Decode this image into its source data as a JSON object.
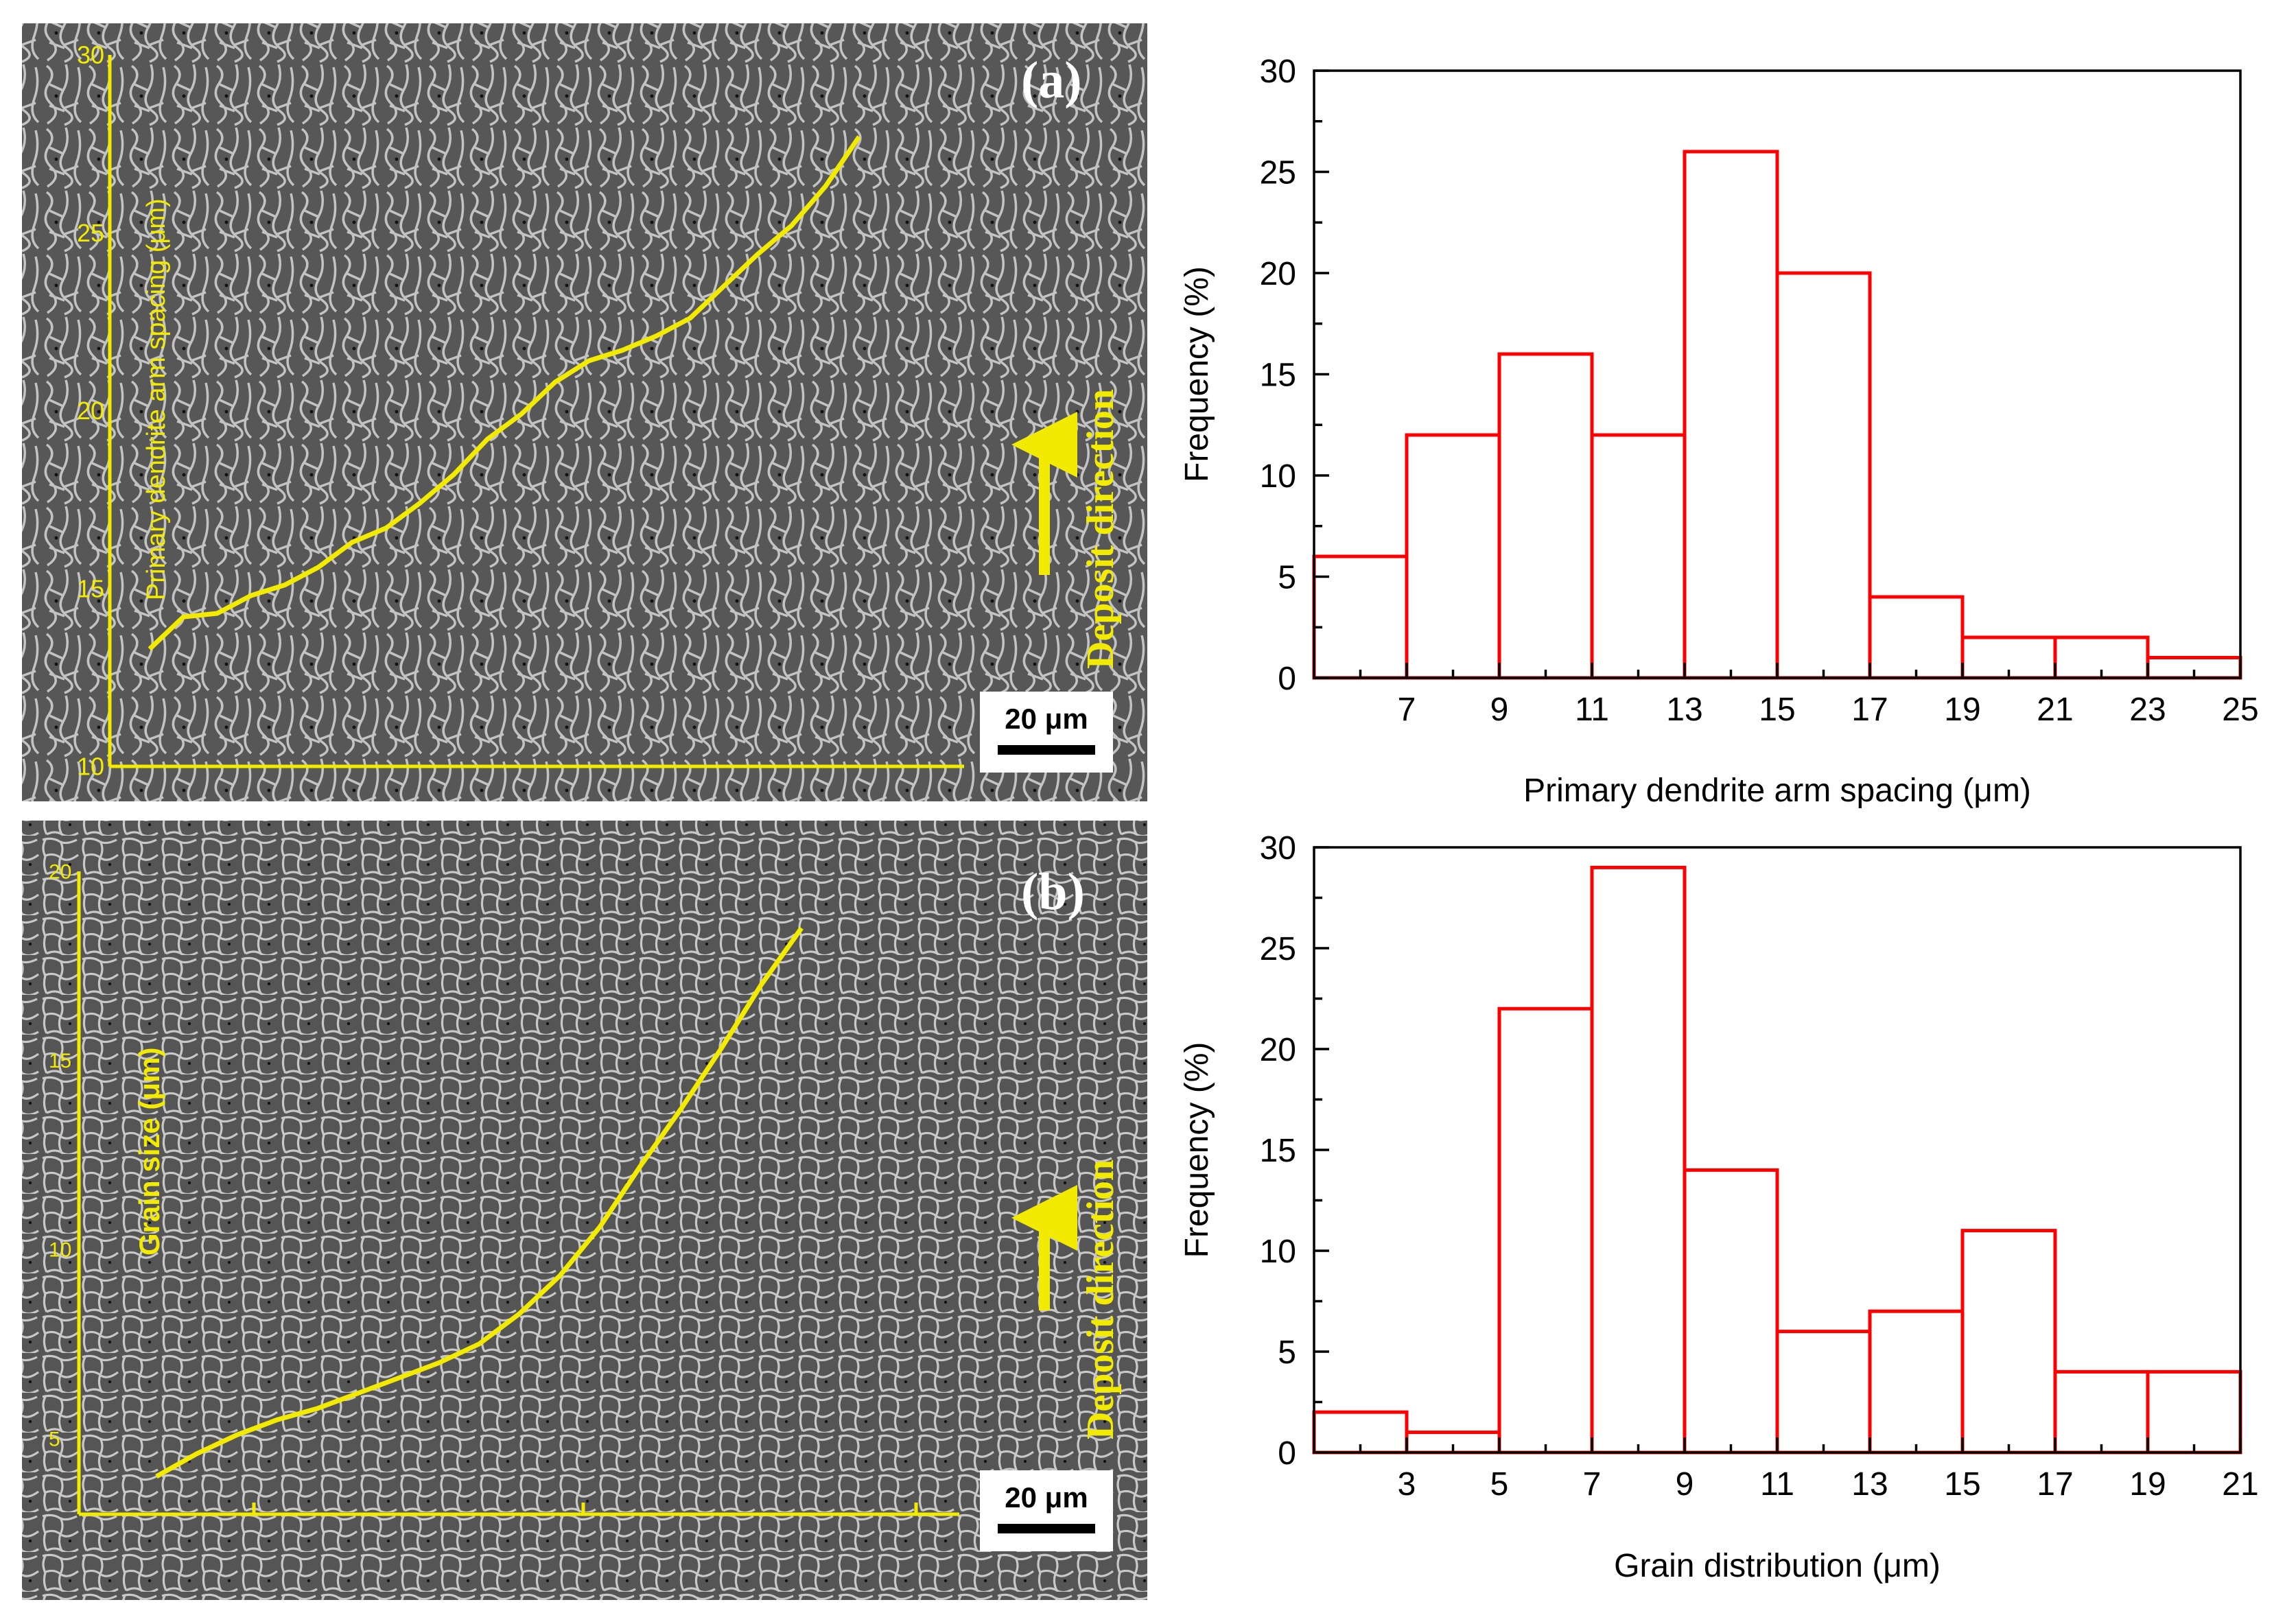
{
  "figure": {
    "colors": {
      "accent_trace": "#f2ea00",
      "histogram_stroke": "#ff0000",
      "micrograph_background": "#555555",
      "micrograph_network": "#d9d9d9"
    },
    "panels": [
      {
        "letter": "(a)",
        "vertical_axis_label": "Primary dendrite arm spacing (μm)",
        "vertical_ticks": [
          "10",
          "15",
          "20",
          "25",
          "30"
        ],
        "direction_label": "Deposit direction",
        "direction_icon": "arrow-up-icon",
        "scale_bar_label": "20 μm",
        "trace": {
          "range": [
            10,
            30
          ],
          "values": [
            13.3,
            14.2,
            14.3,
            14.8,
            15.1,
            15.6,
            16.3,
            16.7,
            17.4,
            18.2,
            19.2,
            19.9,
            20.8,
            21.4,
            21.7,
            22.1,
            22.6,
            23.5,
            24.4,
            25.2,
            26.3,
            27.7
          ]
        }
      },
      {
        "letter": "(b)",
        "vertical_axis_label": "Grain size (μm)",
        "vertical_ticks": [
          "5",
          "10",
          "15",
          "20"
        ],
        "direction_label": "Deposit direction",
        "direction_icon": "arrow-up-icon",
        "scale_bar_label": "20 μm",
        "trace": {
          "range": [
            3,
            20
          ],
          "values": [
            4.0,
            4.6,
            5.1,
            5.5,
            5.8,
            6.2,
            6.6,
            7.0,
            7.5,
            8.3,
            9.3,
            10.6,
            12.2,
            13.7,
            15.3,
            17.0,
            18.5
          ]
        }
      }
    ]
  },
  "chart_data": [
    {
      "type": "bar",
      "bins": [
        [
          5,
          7
        ],
        [
          7,
          9
        ],
        [
          9,
          11
        ],
        [
          11,
          13
        ],
        [
          13,
          15
        ],
        [
          15,
          17
        ],
        [
          17,
          19
        ],
        [
          19,
          21
        ],
        [
          21,
          23
        ],
        [
          23,
          25
        ]
      ],
      "values": [
        6,
        12,
        16,
        12,
        26,
        20,
        4,
        2,
        2,
        1
      ],
      "xlabel": "Primary dendrite arm spacing (μm)",
      "ylabel": "Frequency (%)",
      "xlim": [
        5,
        25
      ],
      "ylim": [
        0,
        30
      ],
      "xticks": [
        7,
        9,
        11,
        13,
        15,
        17,
        19,
        21,
        23,
        25
      ],
      "yticks": [
        0,
        5,
        10,
        15,
        20,
        25,
        30
      ],
      "grid": false,
      "color": "#ff0000"
    },
    {
      "type": "bar",
      "bins": [
        [
          1,
          3
        ],
        [
          3,
          5
        ],
        [
          5,
          7
        ],
        [
          7,
          9
        ],
        [
          9,
          11
        ],
        [
          11,
          13
        ],
        [
          13,
          15
        ],
        [
          15,
          17
        ],
        [
          17,
          19
        ],
        [
          19,
          21
        ]
      ],
      "values": [
        2,
        1,
        22,
        29,
        14,
        6,
        7,
        11,
        4,
        4
      ],
      "xlabel": "Grain distribution (μm)",
      "ylabel": "Frequency (%)",
      "xlim": [
        1,
        21
      ],
      "ylim": [
        0,
        30
      ],
      "xticks": [
        3,
        5,
        7,
        9,
        11,
        13,
        15,
        17,
        19,
        21
      ],
      "yticks": [
        0,
        5,
        10,
        15,
        20,
        25,
        30
      ],
      "grid": false,
      "color": "#ff0000"
    }
  ]
}
